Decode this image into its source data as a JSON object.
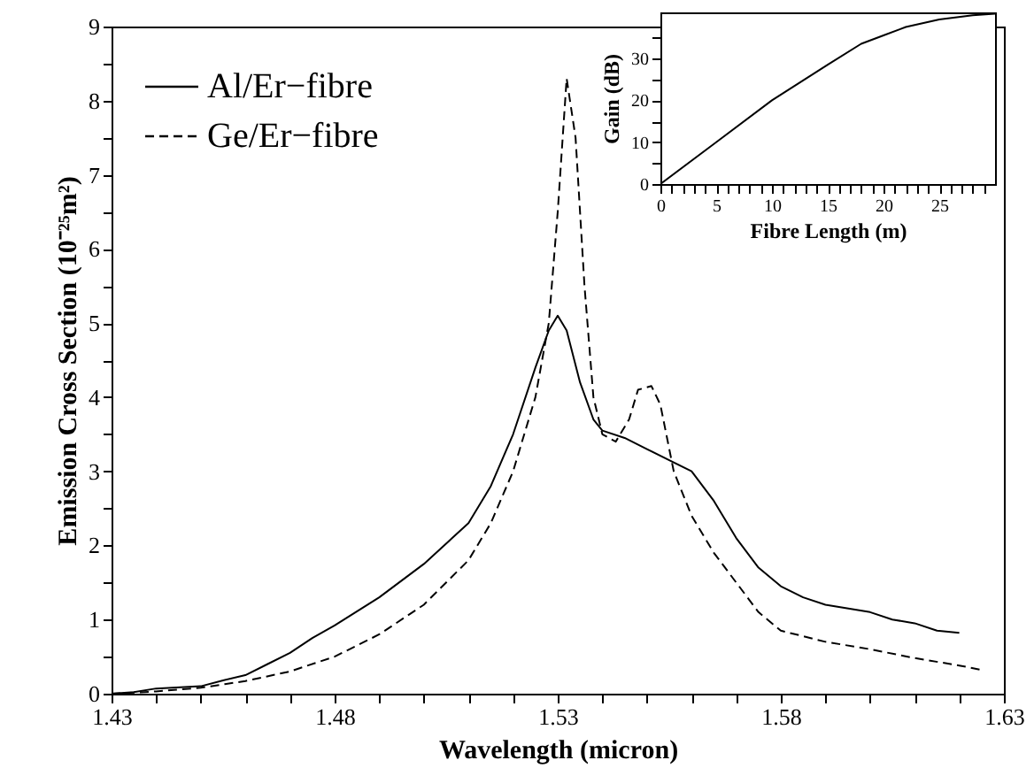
{
  "chart_data": [
    {
      "type": "line",
      "xlabel": "Wavelength (micron)",
      "ylabel": "Emission Cross Section (10⁻²⁵m²)",
      "xlim": [
        1.43,
        1.63
      ],
      "xticks": [
        1.43,
        {
          "value": 1.44,
          "label": null
        },
        {
          "value": 1.45,
          "label": null
        },
        {
          "value": 1.46,
          "label": null
        },
        {
          "value": 1.47,
          "label": null
        },
        1.48,
        {
          "value": 1.49,
          "label": null
        },
        {
          "value": 1.5,
          "label": null
        },
        {
          "value": 1.51,
          "label": null
        },
        {
          "value": 1.52,
          "label": null
        },
        1.53,
        {
          "value": 1.54,
          "label": null
        },
        {
          "value": 1.55,
          "label": null
        },
        {
          "value": 1.56,
          "label": null
        },
        {
          "value": 1.57,
          "label": null
        },
        1.58,
        {
          "value": 1.59,
          "label": null
        },
        {
          "value": 1.6,
          "label": null
        },
        {
          "value": 1.61,
          "label": null
        },
        {
          "value": 1.62,
          "label": null
        },
        1.63
      ],
      "ylim": [
        0,
        9
      ],
      "yticks": [
        0,
        {
          "value": 0.5,
          "label": null
        },
        1,
        {
          "value": 1.5,
          "label": null
        },
        2,
        {
          "value": 2.5,
          "label": null
        },
        3,
        {
          "value": 3.5,
          "label": null
        },
        4,
        {
          "value": 4.5,
          "label": null
        },
        5,
        {
          "value": 5.5,
          "label": null
        },
        6,
        {
          "value": 6.5,
          "label": null
        },
        7,
        {
          "value": 7.5,
          "label": null
        },
        8,
        {
          "value": 8.5,
          "label": null
        },
        9
      ],
      "grid": false,
      "legend": "top left",
      "series": [
        {
          "name": "Al/Er−fibre",
          "color": "#000000",
          "line_style": "solid",
          "x": [
            1.43,
            1.435,
            1.44,
            1.45,
            1.455,
            1.46,
            1.465,
            1.47,
            1.475,
            1.48,
            1.49,
            1.5,
            1.51,
            1.515,
            1.52,
            1.525,
            1.528,
            1.53,
            1.532,
            1.535,
            1.538,
            1.54,
            1.545,
            1.55,
            1.555,
            1.56,
            1.565,
            1.57,
            1.575,
            1.58,
            1.585,
            1.59,
            1.6,
            1.605,
            1.61,
            1.615,
            1.62
          ],
          "values": [
            0,
            0.02,
            0.07,
            0.1,
            0.18,
            0.25,
            0.4,
            0.55,
            0.75,
            0.92,
            1.3,
            1.75,
            2.3,
            2.8,
            3.5,
            4.4,
            4.9,
            5.1,
            4.9,
            4.2,
            3.7,
            3.55,
            3.45,
            3.3,
            3.15,
            3.0,
            2.6,
            2.1,
            1.7,
            1.45,
            1.3,
            1.2,
            1.1,
            1.0,
            0.95,
            0.85,
            0.82
          ]
        },
        {
          "name": "Ge/Er−fibre",
          "color": "#000000",
          "line_style": "dashed",
          "x": [
            1.43,
            1.44,
            1.45,
            1.46,
            1.47,
            1.48,
            1.49,
            1.5,
            1.51,
            1.515,
            1.52,
            1.525,
            1.528,
            1.53,
            1.532,
            1.534,
            1.536,
            1.538,
            1.54,
            1.543,
            1.546,
            1.548,
            1.551,
            1.553,
            1.556,
            1.56,
            1.565,
            1.57,
            1.575,
            1.58,
            1.59,
            1.6,
            1.61,
            1.62,
            1.625
          ],
          "values": [
            0,
            0.03,
            0.08,
            0.17,
            0.3,
            0.5,
            0.8,
            1.2,
            1.8,
            2.3,
            3.0,
            4.0,
            5.0,
            6.5,
            8.3,
            7.5,
            5.5,
            4.0,
            3.5,
            3.4,
            3.7,
            4.1,
            4.15,
            3.9,
            3.0,
            2.4,
            1.9,
            1.5,
            1.1,
            0.85,
            0.7,
            0.6,
            0.48,
            0.38,
            0.32
          ]
        }
      ]
    },
    {
      "type": "line",
      "xlabel": "Fibre Length (m)",
      "ylabel": "Gain (dB)",
      "xlim": [
        0,
        30
      ],
      "xticks": [
        0,
        {
          "value": 1,
          "label": null
        },
        {
          "value": 2,
          "label": null
        },
        {
          "value": 3,
          "label": null
        },
        {
          "value": 4,
          "label": null
        },
        5,
        {
          "value": 6,
          "label": null
        },
        {
          "value": 7,
          "label": null
        },
        {
          "value": 8,
          "label": null
        },
        {
          "value": 9,
          "label": null
        },
        10,
        {
          "value": 11,
          "label": null
        },
        {
          "value": 12,
          "label": null
        },
        {
          "value": 13,
          "label": null
        },
        {
          "value": 14,
          "label": null
        },
        15,
        {
          "value": 16,
          "label": null
        },
        {
          "value": 17,
          "label": null
        },
        {
          "value": 18,
          "label": null
        },
        {
          "value": 19,
          "label": null
        },
        20,
        {
          "value": 21,
          "label": null
        },
        {
          "value": 22,
          "label": null
        },
        {
          "value": 23,
          "label": null
        },
        {
          "value": 24,
          "label": null
        },
        25,
        {
          "value": 26,
          "label": null
        },
        {
          "value": 27,
          "label": null
        },
        {
          "value": 28,
          "label": null
        },
        {
          "value": 29,
          "label": null
        }
      ],
      "ylim": [
        0,
        41
      ],
      "yticks": [
        0,
        {
          "value": 5,
          "label": null
        },
        10,
        {
          "value": 15,
          "label": null
        },
        20,
        {
          "value": 25,
          "label": null
        },
        30,
        {
          "value": 35,
          "label": null
        }
      ],
      "grid": false,
      "series": [
        {
          "color": "#000000",
          "line_style": "solid",
          "x": [
            0,
            5,
            10,
            15,
            18,
            20,
            22,
            25,
            28,
            30
          ],
          "values": [
            0,
            10,
            20,
            28.5,
            33.5,
            35.5,
            37.5,
            39.3,
            40.3,
            40.7
          ]
        }
      ]
    }
  ]
}
